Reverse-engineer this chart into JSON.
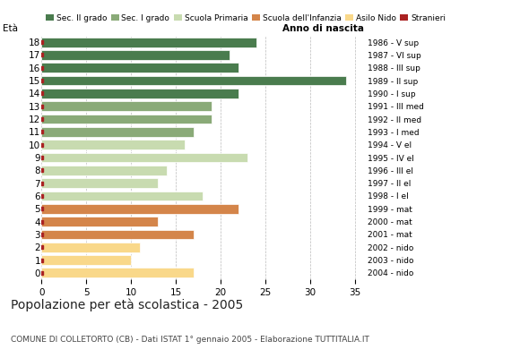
{
  "ages": [
    18,
    17,
    16,
    15,
    14,
    13,
    12,
    11,
    10,
    9,
    8,
    7,
    6,
    5,
    4,
    3,
    2,
    1,
    0
  ],
  "values": [
    24,
    21,
    22,
    34,
    22,
    19,
    19,
    17,
    16,
    23,
    14,
    13,
    18,
    22,
    13,
    17,
    11,
    10,
    17
  ],
  "categories": {
    "sec2": [
      18,
      17,
      16,
      15,
      14
    ],
    "sec1": [
      13,
      12,
      11
    ],
    "primaria": [
      10,
      9,
      8,
      7,
      6
    ],
    "infanzia": [
      5,
      4,
      3
    ],
    "nido": [
      2,
      1,
      0
    ]
  },
  "colors": {
    "sec2": "#4a7c4e",
    "sec1": "#8aaa78",
    "primaria": "#c8dbb0",
    "infanzia": "#d4854a",
    "nido": "#f9d88a",
    "stranieri": "#aa2222"
  },
  "anno_nascita": {
    "18": "1986 - V sup",
    "17": "1987 - VI sup",
    "16": "1988 - III sup",
    "15": "1989 - II sup",
    "14": "1990 - I sup",
    "13": "1991 - III med",
    "12": "1992 - II med",
    "11": "1993 - I med",
    "10": "1994 - V el",
    "9": "1995 - IV el",
    "8": "1996 - III el",
    "7": "1997 - II el",
    "6": "1998 - I el",
    "5": "1999 - mat",
    "4": "2000 - mat",
    "3": "2001 - mat",
    "2": "2002 - nido",
    "1": "2003 - nido",
    "0": "2004 - nido"
  },
  "legend_labels": [
    "Sec. II grado",
    "Sec. I grado",
    "Scuola Primaria",
    "Scuola dell'Infanzia",
    "Asilo Nido",
    "Stranieri"
  ],
  "title": "Popolazione per età scolastica - 2005",
  "subtitle": "COMUNE DI COLLETORTO (CB) - Dati ISTAT 1° gennaio 2005 - Elaborazione TUTTITALIA.IT",
  "eta_label": "Età",
  "anno_label": "Anno di nascita",
  "xlim": [
    0,
    36
  ],
  "xticks": [
    0,
    5,
    10,
    15,
    20,
    25,
    30,
    35
  ],
  "background_color": "#ffffff",
  "grid_color": "#aaaaaa"
}
